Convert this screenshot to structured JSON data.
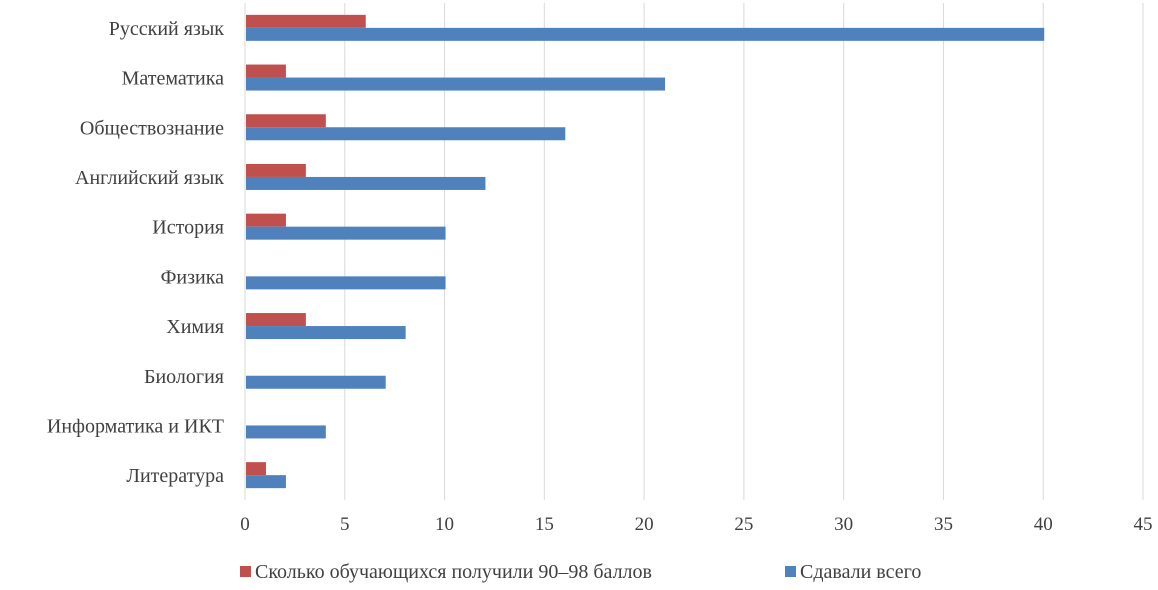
{
  "chart_data": {
    "type": "bar",
    "orientation": "horizontal",
    "categories": [
      "Русский язык",
      "Математика",
      "Обществознание",
      "Английский язык",
      "История",
      "Физика",
      "Химия",
      "Биология",
      "Информатика и ИКТ",
      "Литература"
    ],
    "series": [
      {
        "name": "Сколько обучающихся получили 90–98 баллов",
        "color": "#c0504d",
        "values": [
          6,
          2,
          4,
          3,
          2,
          0,
          3,
          0,
          0,
          1
        ]
      },
      {
        "name": "Сдавали всего",
        "color": "#4f81bd",
        "values": [
          40,
          21,
          16,
          12,
          10,
          10,
          8,
          7,
          4,
          2
        ]
      }
    ],
    "xlim": [
      0,
      45
    ],
    "xticks": [
      0,
      5,
      10,
      15,
      20,
      25,
      30,
      35,
      40,
      45
    ],
    "xtick_labels": [
      "0",
      "5",
      "10",
      "15",
      "20",
      "25",
      "30",
      "35",
      "40",
      "45"
    ],
    "grid": "vertical",
    "legend_position": "bottom",
    "title": "",
    "xlabel": "",
    "ylabel": ""
  }
}
